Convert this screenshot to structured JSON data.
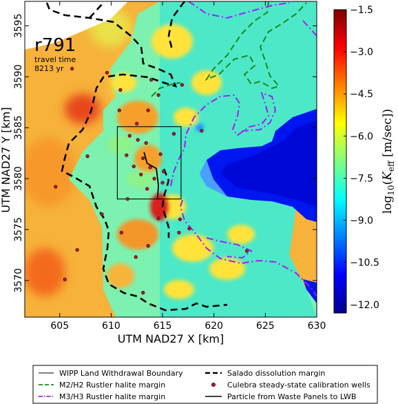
{
  "chart_data": {
    "type": "heatmap",
    "title": "r791",
    "annotation": {
      "line1": "travel time",
      "line2": "8213 yr"
    },
    "xlabel": "UTM NAD27 X [km]",
    "ylabel": "UTM NAD27 Y [km]",
    "xlim": [
      601.6,
      630
    ],
    "ylim": [
      3566.4,
      3597.4
    ],
    "x_ticks": [
      605,
      610,
      615,
      620,
      625,
      630
    ],
    "y_ticks": [
      3570,
      3575,
      3580,
      3585,
      3590,
      3595
    ],
    "x_tick_labels": [
      "605",
      "610",
      "615",
      "620",
      "625",
      "630"
    ],
    "y_tick_labels": [
      "3570",
      "3575",
      "3580",
      "3585",
      "3590",
      "3595"
    ],
    "colorbar": {
      "label": "log10(Keff [m/sec])",
      "range": [
        -12.3,
        -1.5
      ],
      "ticks": [
        -1.5,
        -3.0,
        -4.5,
        -6.0,
        -7.5,
        -9.0,
        -10.5,
        -12.0
      ],
      "tick_labels": [
        "−1.5",
        "−3.0",
        "−4.5",
        "−6.0",
        "−7.5",
        "−9.0",
        "−10.5",
        "−12.0"
      ],
      "colormap": "jet"
    },
    "wipp_boundary": {
      "x": [
        610.6,
        616.8
      ],
      "y": [
        3578.0,
        3585.1
      ]
    },
    "particle_path": [
      [
        613.2,
        3582.6
      ],
      [
        613.5,
        3581.5
      ],
      [
        614.4,
        3581.0
      ],
      [
        614.6,
        3579.3
      ],
      [
        614.5,
        3578.0
      ]
    ],
    "wells": [
      [
        606.2,
        3590.8
      ],
      [
        609.6,
        3590.4
      ],
      [
        613.9,
        3589.7
      ],
      [
        610.9,
        3588.7
      ],
      [
        614.6,
        3588.2
      ],
      [
        616.9,
        3589.2
      ],
      [
        610.8,
        3586.7
      ],
      [
        613.6,
        3586.7
      ],
      [
        612.5,
        3585.4
      ],
      [
        611.8,
        3584.2
      ],
      [
        612.6,
        3583.8
      ],
      [
        613.4,
        3583.5
      ],
      [
        611.5,
        3582.3
      ],
      [
        613.1,
        3582.0
      ],
      [
        614.8,
        3582.4
      ],
      [
        612.2,
        3581.2
      ],
      [
        613.8,
        3581.1
      ],
      [
        615.1,
        3580.7
      ],
      [
        612.9,
        3580.4
      ],
      [
        614.2,
        3580.0
      ],
      [
        615.0,
        3579.6
      ],
      [
        613.5,
        3579.0
      ],
      [
        616.1,
        3584.4
      ],
      [
        618.8,
        3584.7
      ],
      [
        607.7,
        3582.2
      ],
      [
        604.6,
        3579.2
      ],
      [
        609.1,
        3576.5
      ],
      [
        611.6,
        3578.0
      ],
      [
        614.6,
        3576.1
      ],
      [
        616.7,
        3576.0
      ],
      [
        611.0,
        3574.7
      ],
      [
        617.6,
        3575.1
      ],
      [
        616.6,
        3574.7
      ],
      [
        613.6,
        3573.4
      ],
      [
        606.7,
        3573.0
      ],
      [
        612.4,
        3572.3
      ],
      [
        605.5,
        3570.1
      ],
      [
        613.1,
        3568.8
      ],
      [
        623.2,
        3572.9
      ]
    ],
    "legend": {
      "items": [
        {
          "label": "WIPP Land Withdrawal Boundary",
          "style": "thin-solid",
          "color": "#000000"
        },
        {
          "label": "Salado dissolution margin",
          "style": "thick-dashed",
          "color": "#000000"
        },
        {
          "label": "M2/H2 Rustler halite margin",
          "style": "dashed",
          "color": "#1a8a1a"
        },
        {
          "label": "Culebra steady-state calibration wells",
          "style": "dot",
          "color": "#b2182b"
        },
        {
          "label": "M3/H3 Rustler halite margin",
          "style": "dash-dot",
          "color": "#a020f0"
        },
        {
          "label": "Particle from Waste Panels to LWB",
          "style": "solid",
          "color": "#000000"
        }
      ],
      "placement": "bottom"
    }
  }
}
